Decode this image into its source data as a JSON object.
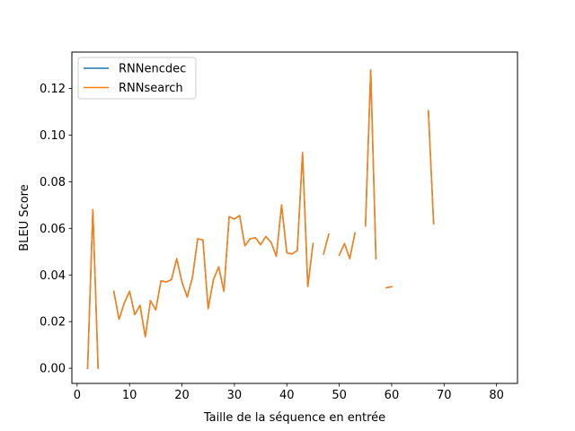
{
  "chart_data": {
    "type": "line",
    "title": "",
    "xlabel": "Taille de la séquence en entrée",
    "ylabel": "BLEU Score",
    "xlim": [
      -1,
      84
    ],
    "ylim": [
      -0.0065,
      0.1356
    ],
    "xticks": [
      0,
      10,
      20,
      30,
      40,
      50,
      60,
      70,
      80
    ],
    "yticks": [
      0.0,
      0.02,
      0.04,
      0.06,
      0.08,
      0.1,
      0.12
    ],
    "xtick_labels": [
      "0",
      "10",
      "20",
      "30",
      "40",
      "50",
      "60",
      "70",
      "80"
    ],
    "ytick_labels": [
      "0.00",
      "0.02",
      "0.04",
      "0.06",
      "0.08",
      "0.10",
      "0.12"
    ],
    "grid": false,
    "legend": {
      "placement": "top-left"
    },
    "series": [
      {
        "name": "RNNencdec",
        "color": "#1f77b4",
        "x": [
          2,
          3,
          4,
          5,
          6,
          7,
          8,
          9,
          10,
          11,
          12,
          13,
          14,
          15,
          16,
          17,
          18,
          19,
          20,
          21,
          22,
          23,
          24,
          25,
          26,
          27,
          28,
          29,
          30,
          31,
          32,
          33,
          34,
          35,
          36,
          37,
          38,
          39,
          40,
          41,
          42,
          43,
          44,
          45,
          46,
          47,
          48,
          49,
          50,
          51,
          52,
          53,
          54,
          55,
          56,
          57,
          58,
          59,
          60,
          61,
          62,
          63,
          64,
          65,
          66,
          67,
          68
        ],
        "y": [
          0.0,
          0.068,
          0.0,
          null,
          null,
          0.033,
          0.021,
          0.028,
          0.033,
          0.023,
          0.027,
          0.0135,
          0.029,
          0.025,
          0.0375,
          0.037,
          0.038,
          0.047,
          0.037,
          0.0305,
          0.039,
          0.0555,
          0.055,
          0.0255,
          0.038,
          0.0435,
          0.033,
          0.065,
          0.064,
          0.0655,
          0.0525,
          0.0555,
          0.056,
          0.053,
          0.0565,
          0.054,
          0.048,
          0.07,
          0.0495,
          0.049,
          0.0505,
          0.0925,
          0.035,
          0.0535,
          null,
          0.049,
          0.0575,
          null,
          0.0485,
          0.0535,
          0.047,
          0.058,
          null,
          0.061,
          0.128,
          0.047,
          null,
          0.0345,
          0.035,
          null,
          null,
          null,
          null,
          null,
          null,
          0.1105,
          0.062
        ]
      },
      {
        "name": "RNNsearch",
        "color": "#ff7f0e",
        "x": [
          2,
          3,
          4,
          5,
          6,
          7,
          8,
          9,
          10,
          11,
          12,
          13,
          14,
          15,
          16,
          17,
          18,
          19,
          20,
          21,
          22,
          23,
          24,
          25,
          26,
          27,
          28,
          29,
          30,
          31,
          32,
          33,
          34,
          35,
          36,
          37,
          38,
          39,
          40,
          41,
          42,
          43,
          44,
          45,
          46,
          47,
          48,
          49,
          50,
          51,
          52,
          53,
          54,
          55,
          56,
          57,
          58,
          59,
          60,
          61,
          62,
          63,
          64,
          65,
          66,
          67,
          68
        ],
        "y": [
          0.0,
          0.068,
          0.0,
          null,
          null,
          0.033,
          0.021,
          0.028,
          0.033,
          0.023,
          0.027,
          0.0135,
          0.029,
          0.025,
          0.0375,
          0.037,
          0.038,
          0.047,
          0.037,
          0.0305,
          0.039,
          0.0555,
          0.055,
          0.0255,
          0.038,
          0.0435,
          0.033,
          0.065,
          0.064,
          0.0655,
          0.0525,
          0.0555,
          0.056,
          0.053,
          0.0565,
          0.054,
          0.048,
          0.07,
          0.0495,
          0.049,
          0.0505,
          0.0925,
          0.035,
          0.0535,
          null,
          0.049,
          0.0575,
          null,
          0.0485,
          0.0535,
          0.047,
          0.058,
          null,
          0.061,
          0.128,
          0.047,
          null,
          0.0345,
          0.035,
          null,
          null,
          null,
          null,
          null,
          null,
          0.1105,
          0.062
        ]
      }
    ]
  }
}
